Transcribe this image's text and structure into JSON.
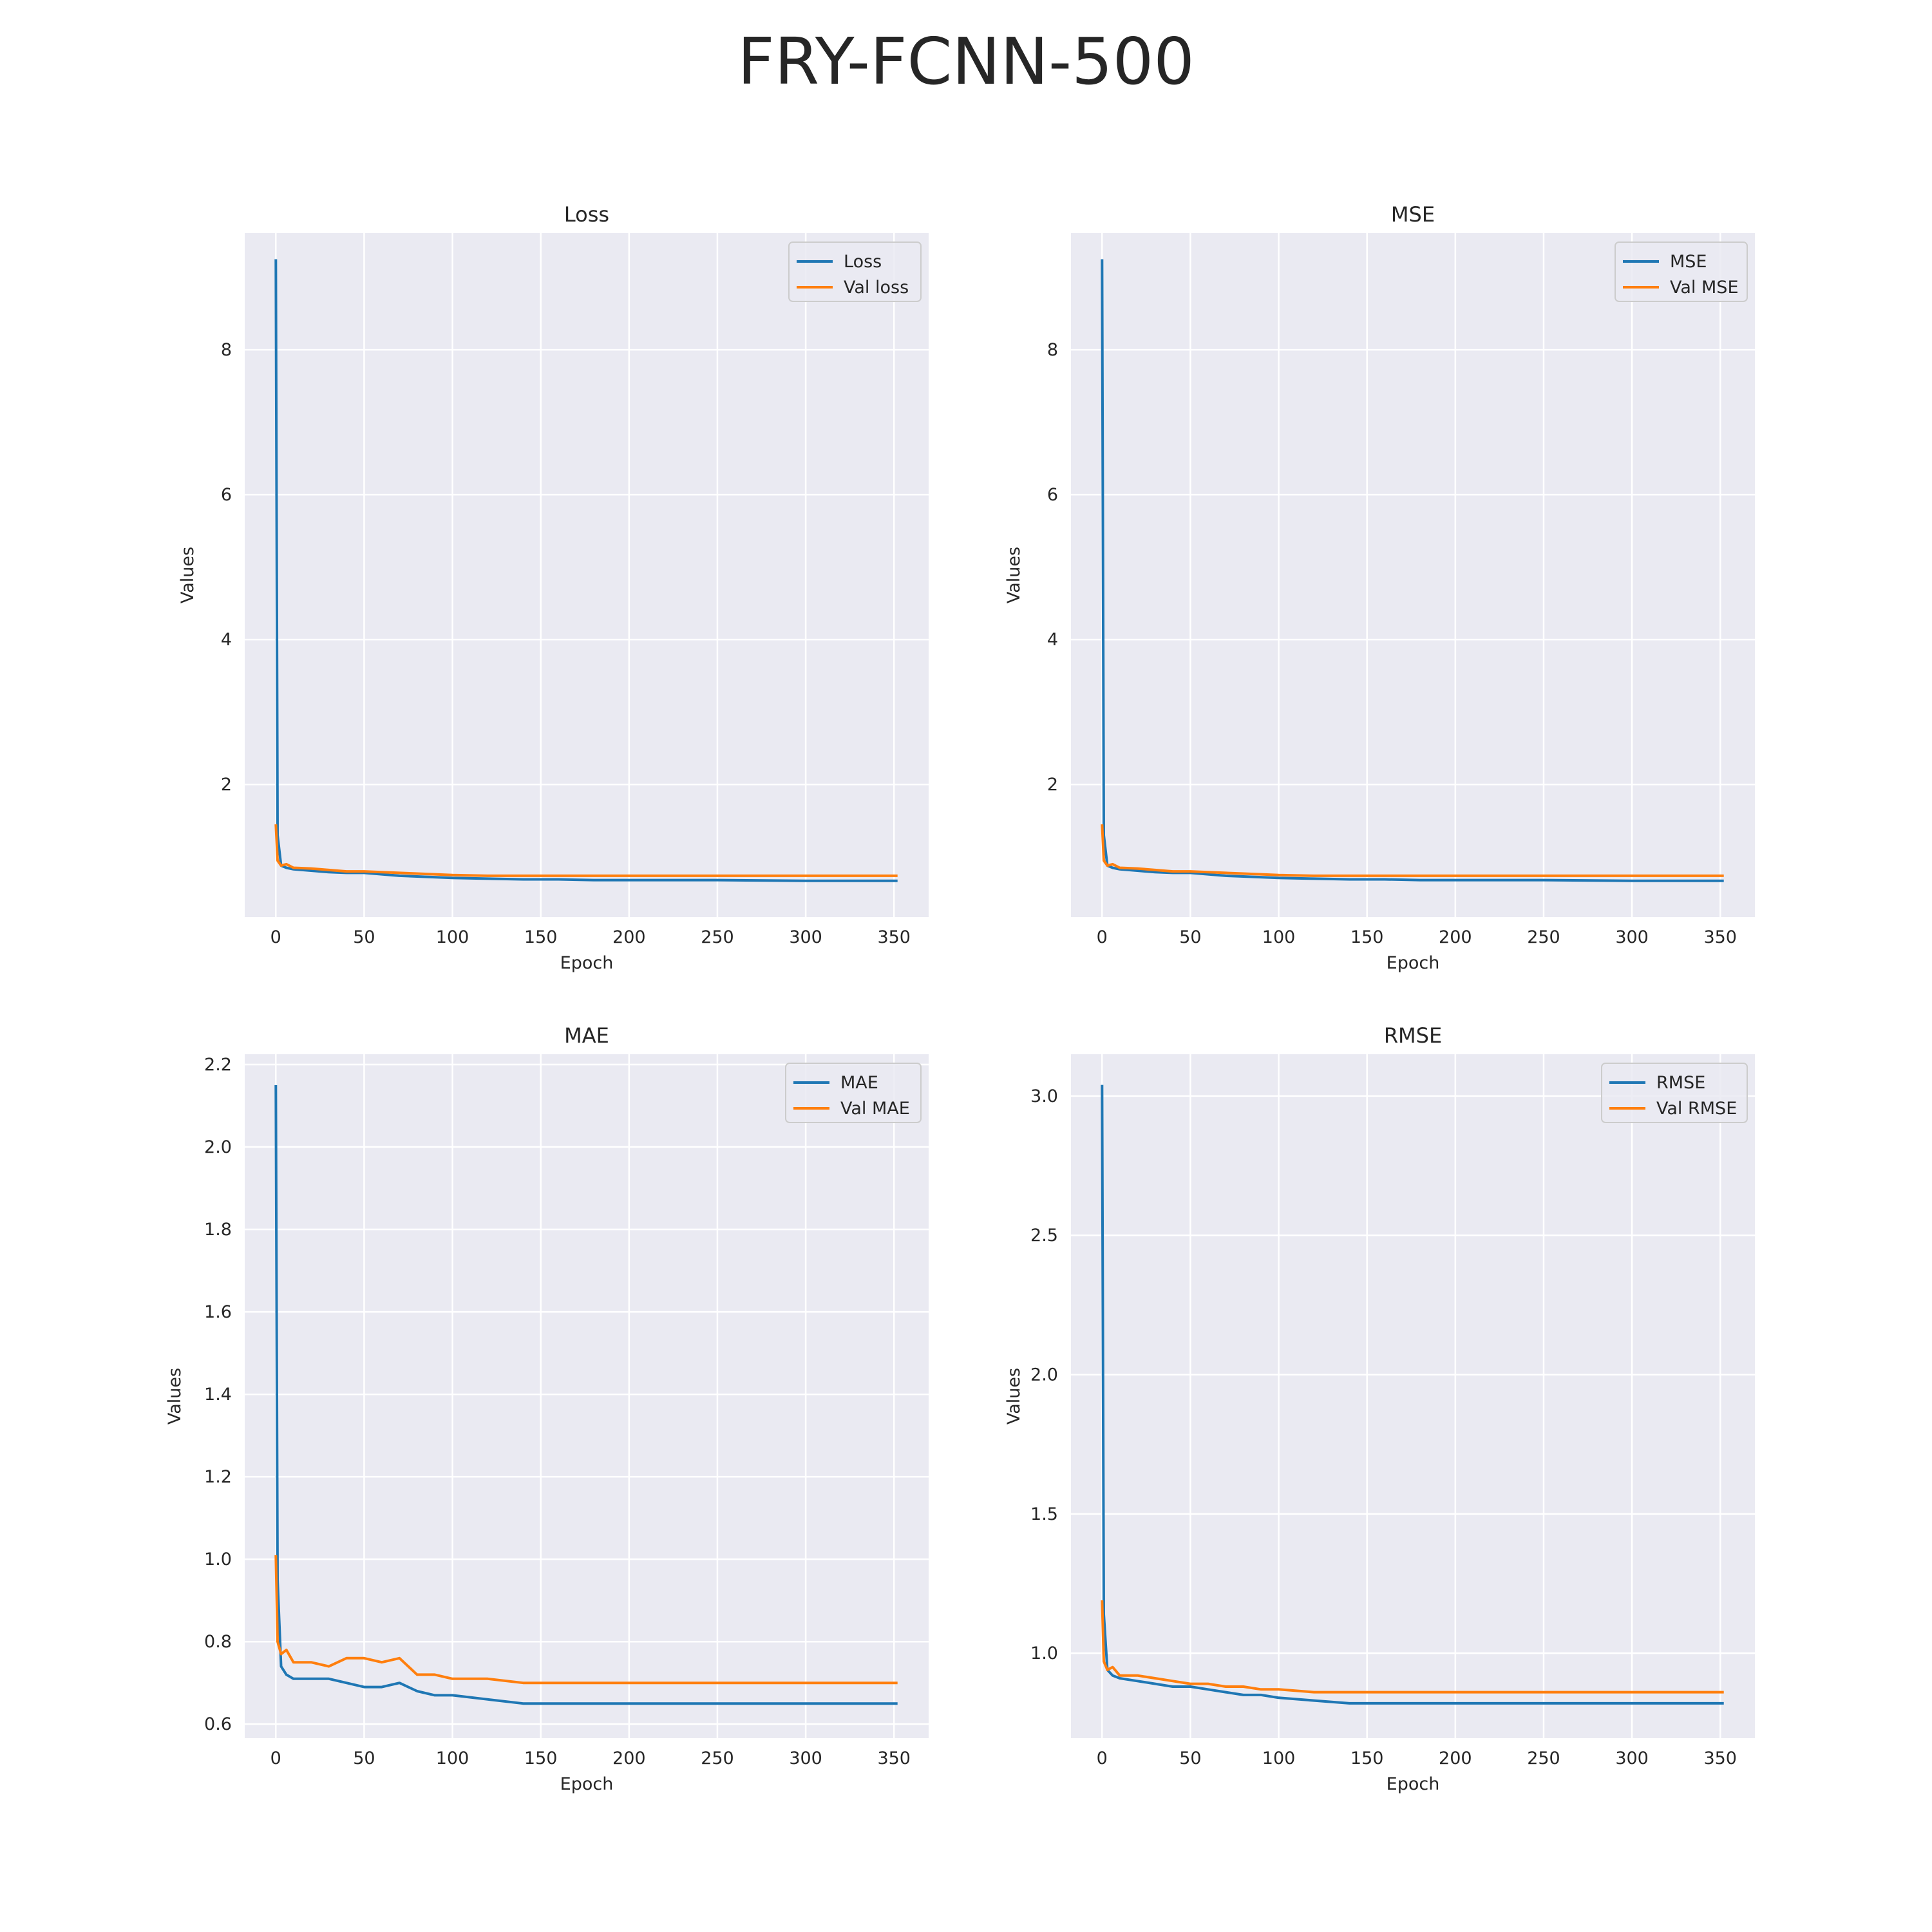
{
  "figure": {
    "suptitle": "FRY-FCNN-500",
    "colors": {
      "train": "#1f77b4",
      "val": "#ff7f0e",
      "panel_bg": "#eaeaf2",
      "grid": "#ffffff"
    }
  },
  "chart_data": [
    {
      "type": "line",
      "title": "Loss",
      "xlabel": "Epoch",
      "ylabel": "Values",
      "xlim": [
        -17.6,
        369.6
      ],
      "ylim": [
        0.17,
        9.61
      ],
      "xticks": [
        0,
        50,
        100,
        150,
        200,
        250,
        300,
        350
      ],
      "xtick_labels": [
        "0",
        "50",
        "100",
        "150",
        "200",
        "250",
        "300",
        "350"
      ],
      "yticks": [
        2,
        4,
        6,
        8
      ],
      "ytick_labels": [
        "2",
        "4",
        "6",
        "8"
      ],
      "grid": true,
      "legend_position": "upper right",
      "series": [
        {
          "name": "Loss",
          "color": "#1f77b4",
          "x": [
            0,
            1,
            3,
            6,
            10,
            20,
            30,
            40,
            50,
            60,
            70,
            80,
            90,
            100,
            120,
            140,
            160,
            180,
            200,
            250,
            300,
            352
          ],
          "y": [
            9.25,
            1.3,
            0.88,
            0.85,
            0.83,
            0.81,
            0.79,
            0.78,
            0.78,
            0.76,
            0.74,
            0.73,
            0.72,
            0.71,
            0.7,
            0.69,
            0.69,
            0.68,
            0.68,
            0.68,
            0.67,
            0.67
          ]
        },
        {
          "name": "Val loss",
          "color": "#ff7f0e",
          "x": [
            0,
            1,
            3,
            6,
            10,
            20,
            30,
            40,
            50,
            60,
            70,
            80,
            90,
            100,
            120,
            140,
            160,
            180,
            200,
            250,
            300,
            352
          ],
          "y": [
            1.45,
            0.95,
            0.88,
            0.9,
            0.85,
            0.84,
            0.82,
            0.8,
            0.8,
            0.79,
            0.78,
            0.77,
            0.76,
            0.75,
            0.74,
            0.74,
            0.74,
            0.74,
            0.74,
            0.74,
            0.74,
            0.74
          ]
        }
      ]
    },
    {
      "type": "line",
      "title": "MSE",
      "xlabel": "Epoch",
      "ylabel": "Values",
      "xlim": [
        -17.6,
        369.6
      ],
      "ylim": [
        0.17,
        9.61
      ],
      "xticks": [
        0,
        50,
        100,
        150,
        200,
        250,
        300,
        350
      ],
      "xtick_labels": [
        "0",
        "50",
        "100",
        "150",
        "200",
        "250",
        "300",
        "350"
      ],
      "yticks": [
        2,
        4,
        6,
        8
      ],
      "ytick_labels": [
        "2",
        "4",
        "6",
        "8"
      ],
      "grid": true,
      "legend_position": "upper right",
      "series": [
        {
          "name": "MSE",
          "color": "#1f77b4",
          "x": [
            0,
            1,
            3,
            6,
            10,
            20,
            30,
            40,
            50,
            60,
            70,
            80,
            90,
            100,
            120,
            140,
            160,
            180,
            200,
            250,
            300,
            352
          ],
          "y": [
            9.25,
            1.3,
            0.88,
            0.85,
            0.83,
            0.81,
            0.79,
            0.78,
            0.78,
            0.76,
            0.74,
            0.73,
            0.72,
            0.71,
            0.7,
            0.69,
            0.69,
            0.68,
            0.68,
            0.68,
            0.67,
            0.67
          ]
        },
        {
          "name": "Val MSE",
          "color": "#ff7f0e",
          "x": [
            0,
            1,
            3,
            6,
            10,
            20,
            30,
            40,
            50,
            60,
            70,
            80,
            90,
            100,
            120,
            140,
            160,
            180,
            200,
            250,
            300,
            352
          ],
          "y": [
            1.45,
            0.95,
            0.88,
            0.9,
            0.85,
            0.84,
            0.82,
            0.8,
            0.8,
            0.79,
            0.78,
            0.77,
            0.76,
            0.75,
            0.74,
            0.74,
            0.74,
            0.74,
            0.74,
            0.74,
            0.74,
            0.74
          ]
        }
      ]
    },
    {
      "type": "line",
      "title": "MAE",
      "xlabel": "Epoch",
      "ylabel": "Values",
      "xlim": [
        -17.6,
        369.6
      ],
      "ylim": [
        0.566,
        2.225
      ],
      "xticks": [
        0,
        50,
        100,
        150,
        200,
        250,
        300,
        350
      ],
      "xtick_labels": [
        "0",
        "50",
        "100",
        "150",
        "200",
        "250",
        "300",
        "350"
      ],
      "yticks": [
        0.6,
        0.8,
        1.0,
        1.2,
        1.4,
        1.6,
        1.8,
        2.0,
        2.2
      ],
      "ytick_labels": [
        "0.6",
        "0.8",
        "1.0",
        "1.2",
        "1.4",
        "1.6",
        "1.8",
        "2.0",
        "2.2"
      ],
      "grid": true,
      "legend_position": "upper right",
      "series": [
        {
          "name": "MAE",
          "color": "#1f77b4",
          "x": [
            0,
            1,
            3,
            6,
            10,
            20,
            30,
            40,
            50,
            60,
            70,
            80,
            90,
            100,
            120,
            140,
            160,
            180,
            200,
            250,
            300,
            352
          ],
          "y": [
            2.15,
            0.95,
            0.74,
            0.72,
            0.71,
            0.71,
            0.71,
            0.7,
            0.69,
            0.69,
            0.7,
            0.68,
            0.67,
            0.67,
            0.66,
            0.65,
            0.65,
            0.65,
            0.65,
            0.65,
            0.65,
            0.65
          ]
        },
        {
          "name": "Val MAE",
          "color": "#ff7f0e",
          "x": [
            0,
            1,
            3,
            6,
            10,
            20,
            30,
            40,
            50,
            60,
            70,
            80,
            90,
            100,
            120,
            140,
            160,
            180,
            200,
            250,
            300,
            352
          ],
          "y": [
            1.01,
            0.8,
            0.77,
            0.78,
            0.75,
            0.75,
            0.74,
            0.76,
            0.76,
            0.75,
            0.76,
            0.72,
            0.72,
            0.71,
            0.71,
            0.7,
            0.7,
            0.7,
            0.7,
            0.7,
            0.7,
            0.7
          ]
        }
      ]
    },
    {
      "type": "line",
      "title": "RMSE",
      "xlabel": "Epoch",
      "ylabel": "Values",
      "xlim": [
        -17.6,
        369.6
      ],
      "ylim": [
        0.695,
        3.15
      ],
      "xticks": [
        0,
        50,
        100,
        150,
        200,
        250,
        300,
        350
      ],
      "xtick_labels": [
        "0",
        "50",
        "100",
        "150",
        "200",
        "250",
        "300",
        "350"
      ],
      "yticks": [
        1.0,
        1.5,
        2.0,
        2.5,
        3.0
      ],
      "ytick_labels": [
        "1.0",
        "1.5",
        "2.0",
        "2.5",
        "3.0"
      ],
      "grid": true,
      "legend_position": "upper right",
      "series": [
        {
          "name": "RMSE",
          "color": "#1f77b4",
          "x": [
            0,
            1,
            3,
            6,
            10,
            20,
            30,
            40,
            50,
            60,
            70,
            80,
            90,
            100,
            120,
            140,
            160,
            180,
            200,
            250,
            300,
            352
          ],
          "y": [
            3.04,
            1.14,
            0.94,
            0.92,
            0.91,
            0.9,
            0.89,
            0.88,
            0.88,
            0.87,
            0.86,
            0.85,
            0.85,
            0.84,
            0.83,
            0.82,
            0.82,
            0.82,
            0.82,
            0.82,
            0.82,
            0.82
          ]
        },
        {
          "name": "Val RMSE",
          "color": "#ff7f0e",
          "x": [
            0,
            1,
            3,
            6,
            10,
            20,
            30,
            40,
            50,
            60,
            70,
            80,
            90,
            100,
            120,
            140,
            160,
            180,
            200,
            250,
            300,
            352
          ],
          "y": [
            1.19,
            0.97,
            0.94,
            0.95,
            0.92,
            0.92,
            0.91,
            0.9,
            0.89,
            0.89,
            0.88,
            0.88,
            0.87,
            0.87,
            0.86,
            0.86,
            0.86,
            0.86,
            0.86,
            0.86,
            0.86,
            0.86
          ]
        }
      ]
    }
  ]
}
